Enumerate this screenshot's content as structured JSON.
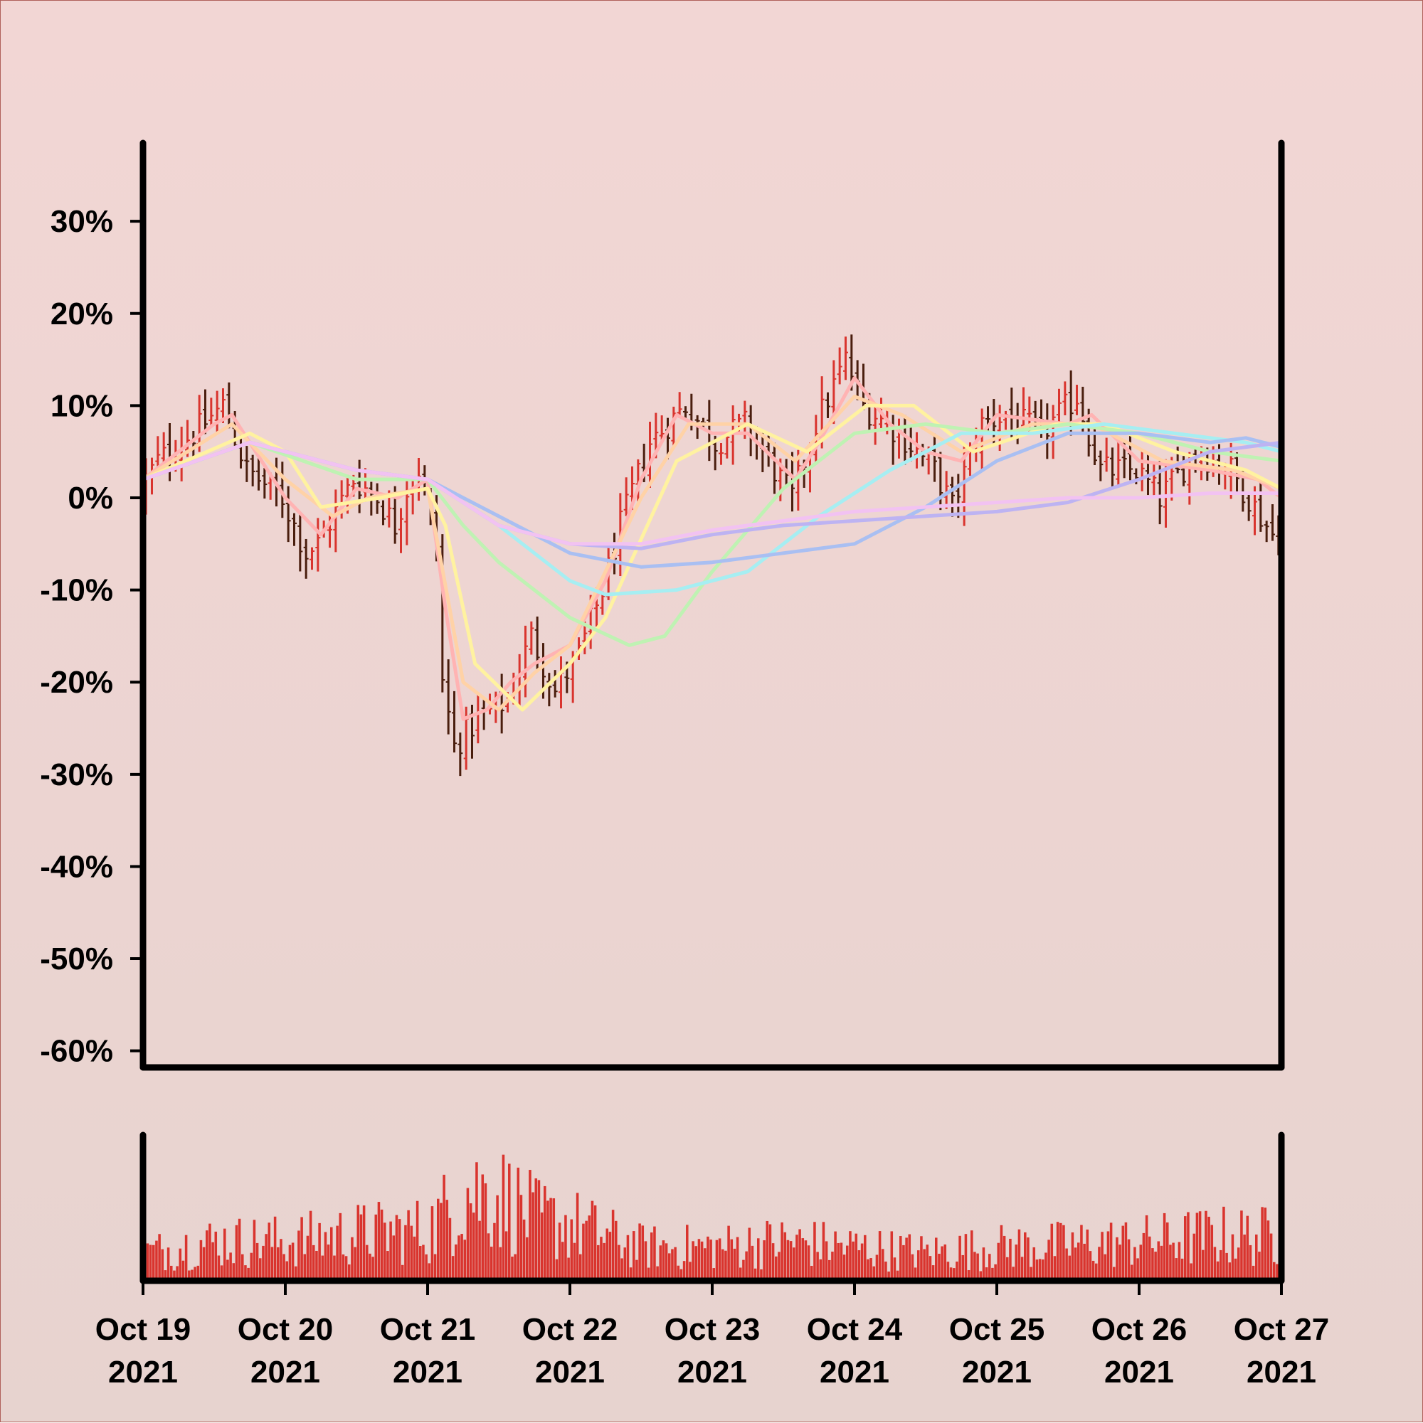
{
  "chart_data": {
    "type": "ohlc",
    "title": "",
    "xlabel": "",
    "ylabel": "",
    "ylim": [
      -60,
      38
    ],
    "y_ticks": [
      "30%",
      "20%",
      "10%",
      "0%",
      "-10%",
      "-20%",
      "-30%",
      "-40%",
      "-50%",
      "-60%"
    ],
    "y_tick_values": [
      30,
      20,
      10,
      0,
      -10,
      -20,
      -30,
      -40,
      -50,
      -60
    ],
    "x_start": "2021-10-19",
    "x_end": "2021-10-27",
    "x_ticks": [
      {
        "line1": "Oct 19",
        "line2": "2021"
      },
      {
        "line1": "Oct 20",
        "line2": "2021"
      },
      {
        "line1": "Oct 21",
        "line2": "2021"
      },
      {
        "line1": "Oct 22",
        "line2": "2021"
      },
      {
        "line1": "Oct 23",
        "line2": "2021"
      },
      {
        "line1": "Oct 24",
        "line2": "2021"
      },
      {
        "line1": "Oct 25",
        "line2": "2021"
      },
      {
        "line1": "Oct 26",
        "line2": "2021"
      },
      {
        "line1": "Oct 27",
        "line2": "2021"
      }
    ],
    "bar_interval_hours": 1,
    "close_anchors": [
      {
        "t": "2021-10-19 00:00",
        "y": 1
      },
      {
        "t": "2021-10-19 03:00",
        "y": 4
      },
      {
        "t": "2021-10-19 09:00",
        "y": 7
      },
      {
        "t": "2021-10-19 14:00",
        "y": 10
      },
      {
        "t": "2021-10-19 18:00",
        "y": 3
      },
      {
        "t": "2021-10-20 00:00",
        "y": 0
      },
      {
        "t": "2021-10-20 04:00",
        "y": -6
      },
      {
        "t": "2021-10-20 06:00",
        "y": -5
      },
      {
        "t": "2021-10-20 12:00",
        "y": 2
      },
      {
        "t": "2021-10-20 16:00",
        "y": 0
      },
      {
        "t": "2021-10-20 19:00",
        "y": -3
      },
      {
        "t": "2021-10-20 21:00",
        "y": 1
      },
      {
        "t": "2021-10-20 23:00",
        "y": 3
      },
      {
        "t": "2021-10-21 02:00",
        "y": -5
      },
      {
        "t": "2021-10-21 03:00",
        "y": -20
      },
      {
        "t": "2021-10-21 05:00",
        "y": -27
      },
      {
        "t": "2021-10-21 09:00",
        "y": -24
      },
      {
        "t": "2021-10-21 14:00",
        "y": -22
      },
      {
        "t": "2021-10-21 18:00",
        "y": -15
      },
      {
        "t": "2021-10-21 22:00",
        "y": -21
      },
      {
        "t": "2021-10-22 02:00",
        "y": -17
      },
      {
        "t": "2021-10-22 06:00",
        "y": -10
      },
      {
        "t": "2021-10-22 09:00",
        "y": -3
      },
      {
        "t": "2021-10-22 14:00",
        "y": 6
      },
      {
        "t": "2021-10-22 20:00",
        "y": 10
      },
      {
        "t": "2021-10-23 01:00",
        "y": 6
      },
      {
        "t": "2021-10-23 06:00",
        "y": 8
      },
      {
        "t": "2021-10-23 12:00",
        "y": 2
      },
      {
        "t": "2021-10-23 14:00",
        "y": 0
      },
      {
        "t": "2021-10-23 18:00",
        "y": 8
      },
      {
        "t": "2021-10-23 23:00",
        "y": 15
      },
      {
        "t": "2021-10-24 02:00",
        "y": 10
      },
      {
        "t": "2021-10-24 08:00",
        "y": 7
      },
      {
        "t": "2021-10-24 14:00",
        "y": 3
      },
      {
        "t": "2021-10-24 17:00",
        "y": -1
      },
      {
        "t": "2021-10-24 22:00",
        "y": 8
      },
      {
        "t": "2021-10-25 02:00",
        "y": 9
      },
      {
        "t": "2021-10-25 08:00",
        "y": 7
      },
      {
        "t": "2021-10-25 14:00",
        "y": 11
      },
      {
        "t": "2021-10-25 18:00",
        "y": 3
      },
      {
        "t": "2021-10-26 00:00",
        "y": 3
      },
      {
        "t": "2021-10-26 04:00",
        "y": 0
      },
      {
        "t": "2021-10-26 10:00",
        "y": 5
      },
      {
        "t": "2021-10-26 16:00",
        "y": 3
      },
      {
        "t": "2021-10-26 20:00",
        "y": -1
      },
      {
        "t": "2021-10-26 23:00",
        "y": -4
      }
    ],
    "series": [
      {
        "color": "#ffb3b3",
        "points": [
          {
            "t": "2021-10-19 00:00",
            "y": 2
          },
          {
            "t": "2021-10-19 12:00",
            "y": 8
          },
          {
            "t": "2021-10-19 15:00",
            "y": 9
          },
          {
            "t": "2021-10-20 00:00",
            "y": 0
          },
          {
            "t": "2021-10-20 06:00",
            "y": -4
          },
          {
            "t": "2021-10-20 12:00",
            "y": 1
          },
          {
            "t": "2021-10-20 19:00",
            "y": 0
          },
          {
            "t": "2021-10-21 00:00",
            "y": 2
          },
          {
            "t": "2021-10-21 03:00",
            "y": -12
          },
          {
            "t": "2021-10-21 06:00",
            "y": -24
          },
          {
            "t": "2021-10-21 10:00",
            "y": -23
          },
          {
            "t": "2021-10-21 14:00",
            "y": -20
          },
          {
            "t": "2021-10-21 18:00",
            "y": -18
          },
          {
            "t": "2021-10-22 00:00",
            "y": -16
          },
          {
            "t": "2021-10-22 06:00",
            "y": -9
          },
          {
            "t": "2021-10-22 12:00",
            "y": 2
          },
          {
            "t": "2021-10-22 18:00",
            "y": 9
          },
          {
            "t": "2021-10-23 00:00",
            "y": 7
          },
          {
            "t": "2021-10-23 06:00",
            "y": 7
          },
          {
            "t": "2021-10-23 14:00",
            "y": 2
          },
          {
            "t": "2021-10-23 18:00",
            "y": 6
          },
          {
            "t": "2021-10-24 00:00",
            "y": 13
          },
          {
            "t": "2021-10-24 06:00",
            "y": 8
          },
          {
            "t": "2021-10-24 12:00",
            "y": 5
          },
          {
            "t": "2021-10-24 18:00",
            "y": 4
          },
          {
            "t": "2021-10-25 00:00",
            "y": 9
          },
          {
            "t": "2021-10-25 12:00",
            "y": 8
          },
          {
            "t": "2021-10-25 16:00",
            "y": 9
          },
          {
            "t": "2021-10-26 00:00",
            "y": 4
          },
          {
            "t": "2021-10-26 12:00",
            "y": 3
          },
          {
            "t": "2021-10-26 20:00",
            "y": 2
          },
          {
            "t": "2021-10-27 00:00",
            "y": 0
          }
        ]
      },
      {
        "color": "#ffd2a6",
        "points": [
          {
            "t": "2021-10-19 00:00",
            "y": 2
          },
          {
            "t": "2021-10-19 15:00",
            "y": 8
          },
          {
            "t": "2021-10-20 00:00",
            "y": 2
          },
          {
            "t": "2021-10-20 08:00",
            "y": -2
          },
          {
            "t": "2021-10-20 14:00",
            "y": 0
          },
          {
            "t": "2021-10-21 00:00",
            "y": 1
          },
          {
            "t": "2021-10-21 06:00",
            "y": -20
          },
          {
            "t": "2021-10-21 12:00",
            "y": -23
          },
          {
            "t": "2021-10-21 18:00",
            "y": -19
          },
          {
            "t": "2021-10-22 00:00",
            "y": -16
          },
          {
            "t": "2021-10-22 12:00",
            "y": 0
          },
          {
            "t": "2021-10-22 20:00",
            "y": 8
          },
          {
            "t": "2021-10-23 06:00",
            "y": 8
          },
          {
            "t": "2021-10-23 14:00",
            "y": 4
          },
          {
            "t": "2021-10-24 00:00",
            "y": 11
          },
          {
            "t": "2021-10-24 08:00",
            "y": 9
          },
          {
            "t": "2021-10-24 18:00",
            "y": 5
          },
          {
            "t": "2021-10-25 06:00",
            "y": 8
          },
          {
            "t": "2021-10-25 16:00",
            "y": 8
          },
          {
            "t": "2021-10-26 04:00",
            "y": 4
          },
          {
            "t": "2021-10-26 16:00",
            "y": 3
          },
          {
            "t": "2021-10-27 00:00",
            "y": 1
          }
        ]
      },
      {
        "color": "#fff2a0",
        "points": [
          {
            "t": "2021-10-19 00:00",
            "y": 2
          },
          {
            "t": "2021-10-19 18:00",
            "y": 7
          },
          {
            "t": "2021-10-20 00:00",
            "y": 5
          },
          {
            "t": "2021-10-20 06:00",
            "y": -1
          },
          {
            "t": "2021-10-20 16:00",
            "y": 0
          },
          {
            "t": "2021-10-21 00:00",
            "y": 1
          },
          {
            "t": "2021-10-21 03:00",
            "y": -3
          },
          {
            "t": "2021-10-21 08:00",
            "y": -18
          },
          {
            "t": "2021-10-21 16:00",
            "y": -23
          },
          {
            "t": "2021-10-22 00:00",
            "y": -18
          },
          {
            "t": "2021-10-22 06:00",
            "y": -13
          },
          {
            "t": "2021-10-22 18:00",
            "y": 4
          },
          {
            "t": "2021-10-23 06:00",
            "y": 8
          },
          {
            "t": "2021-10-23 16:00",
            "y": 5
          },
          {
            "t": "2021-10-24 02:00",
            "y": 10
          },
          {
            "t": "2021-10-24 10:00",
            "y": 10
          },
          {
            "t": "2021-10-24 20:00",
            "y": 5
          },
          {
            "t": "2021-10-25 10:00",
            "y": 8
          },
          {
            "t": "2021-10-25 18:00",
            "y": 8
          },
          {
            "t": "2021-10-26 06:00",
            "y": 5
          },
          {
            "t": "2021-10-26 18:00",
            "y": 3
          },
          {
            "t": "2021-10-27 00:00",
            "y": 1
          }
        ]
      },
      {
        "color": "#bff2b3",
        "points": [
          {
            "t": "2021-10-19 00:00",
            "y": 2
          },
          {
            "t": "2021-10-19 18:00",
            "y": 6
          },
          {
            "t": "2021-10-20 12:00",
            "y": 2
          },
          {
            "t": "2021-10-21 00:00",
            "y": 2
          },
          {
            "t": "2021-10-21 06:00",
            "y": -3
          },
          {
            "t": "2021-10-21 12:00",
            "y": -7
          },
          {
            "t": "2021-10-22 00:00",
            "y": -13
          },
          {
            "t": "2021-10-22 10:00",
            "y": -16
          },
          {
            "t": "2021-10-22 16:00",
            "y": -15
          },
          {
            "t": "2021-10-23 00:00",
            "y": -8
          },
          {
            "t": "2021-10-23 12:00",
            "y": 1
          },
          {
            "t": "2021-10-24 00:00",
            "y": 7
          },
          {
            "t": "2021-10-24 12:00",
            "y": 8
          },
          {
            "t": "2021-10-25 00:00",
            "y": 7
          },
          {
            "t": "2021-10-25 12:00",
            "y": 8
          },
          {
            "t": "2021-10-26 00:00",
            "y": 7
          },
          {
            "t": "2021-10-26 12:00",
            "y": 5
          },
          {
            "t": "2021-10-27 00:00",
            "y": 4
          }
        ]
      },
      {
        "color": "#a6eef2",
        "points": [
          {
            "t": "2021-10-19 00:00",
            "y": 2
          },
          {
            "t": "2021-10-19 18:00",
            "y": 6
          },
          {
            "t": "2021-10-20 12:00",
            "y": 3
          },
          {
            "t": "2021-10-21 00:00",
            "y": 2
          },
          {
            "t": "2021-10-21 12:00",
            "y": -3
          },
          {
            "t": "2021-10-22 00:00",
            "y": -9
          },
          {
            "t": "2021-10-22 06:00",
            "y": -10.5
          },
          {
            "t": "2021-10-22 18:00",
            "y": -10
          },
          {
            "t": "2021-10-23 06:00",
            "y": -8
          },
          {
            "t": "2021-10-23 18:00",
            "y": -2
          },
          {
            "t": "2021-10-24 06:00",
            "y": 3
          },
          {
            "t": "2021-10-24 18:00",
            "y": 7
          },
          {
            "t": "2021-10-25 06:00",
            "y": 7
          },
          {
            "t": "2021-10-25 18:00",
            "y": 8
          },
          {
            "t": "2021-10-26 06:00",
            "y": 7
          },
          {
            "t": "2021-10-26 18:00",
            "y": 6
          },
          {
            "t": "2021-10-27 00:00",
            "y": 5
          }
        ]
      },
      {
        "color": "#a9bff2",
        "points": [
          {
            "t": "2021-10-19 00:00",
            "y": 2
          },
          {
            "t": "2021-10-19 18:00",
            "y": 6
          },
          {
            "t": "2021-10-20 12:00",
            "y": 3
          },
          {
            "t": "2021-10-21 00:00",
            "y": 2
          },
          {
            "t": "2021-10-21 12:00",
            "y": -2
          },
          {
            "t": "2021-10-22 00:00",
            "y": -6
          },
          {
            "t": "2021-10-22 12:00",
            "y": -7.5
          },
          {
            "t": "2021-10-23 00:00",
            "y": -7
          },
          {
            "t": "2021-10-23 12:00",
            "y": -6
          },
          {
            "t": "2021-10-24 00:00",
            "y": -5
          },
          {
            "t": "2021-10-24 12:00",
            "y": -1
          },
          {
            "t": "2021-10-25 00:00",
            "y": 4
          },
          {
            "t": "2021-10-25 12:00",
            "y": 7
          },
          {
            "t": "2021-10-26 00:00",
            "y": 7
          },
          {
            "t": "2021-10-26 12:00",
            "y": 6
          },
          {
            "t": "2021-10-26 18:00",
            "y": 6.5
          },
          {
            "t": "2021-10-27 00:00",
            "y": 5.5
          }
        ]
      },
      {
        "color": "#bdb3f2",
        "points": [
          {
            "t": "2021-10-19 00:00",
            "y": 2
          },
          {
            "t": "2021-10-19 18:00",
            "y": 6
          },
          {
            "t": "2021-10-20 12:00",
            "y": 3
          },
          {
            "t": "2021-10-21 00:00",
            "y": 2
          },
          {
            "t": "2021-10-21 12:00",
            "y": -3
          },
          {
            "t": "2021-10-22 00:00",
            "y": -5
          },
          {
            "t": "2021-10-22 12:00",
            "y": -5.5
          },
          {
            "t": "2021-10-23 00:00",
            "y": -4
          },
          {
            "t": "2021-10-23 12:00",
            "y": -3
          },
          {
            "t": "2021-10-24 00:00",
            "y": -2.5
          },
          {
            "t": "2021-10-24 12:00",
            "y": -2
          },
          {
            "t": "2021-10-25 00:00",
            "y": -1.5
          },
          {
            "t": "2021-10-25 12:00",
            "y": -0.5
          },
          {
            "t": "2021-10-26 00:00",
            "y": 2
          },
          {
            "t": "2021-10-26 12:00",
            "y": 5
          },
          {
            "t": "2021-10-27 00:00",
            "y": 6
          }
        ]
      },
      {
        "color": "#f2c2f2",
        "points": [
          {
            "t": "2021-10-19 00:00",
            "y": 2
          },
          {
            "t": "2021-10-19 18:00",
            "y": 6
          },
          {
            "t": "2021-10-20 12:00",
            "y": 3
          },
          {
            "t": "2021-10-21 00:00",
            "y": 2
          },
          {
            "t": "2021-10-21 12:00",
            "y": -3
          },
          {
            "t": "2021-10-22 00:00",
            "y": -5
          },
          {
            "t": "2021-10-22 12:00",
            "y": -5
          },
          {
            "t": "2021-10-23 00:00",
            "y": -3.5
          },
          {
            "t": "2021-10-23 12:00",
            "y": -2.5
          },
          {
            "t": "2021-10-24 00:00",
            "y": -1.5
          },
          {
            "t": "2021-10-24 12:00",
            "y": -1
          },
          {
            "t": "2021-10-25 00:00",
            "y": -0.5
          },
          {
            "t": "2021-10-25 12:00",
            "y": 0
          },
          {
            "t": "2021-10-26 00:00",
            "y": 0
          },
          {
            "t": "2021-10-26 12:00",
            "y": 0.5
          },
          {
            "t": "2021-10-27 00:00",
            "y": 0.5
          }
        ]
      }
    ],
    "volume": {
      "color": "#d9342e",
      "levels": [
        {
          "t": "2021-10-19 00:00",
          "v": 0.25
        },
        {
          "t": "2021-10-19 12:00",
          "v": 0.35
        },
        {
          "t": "2021-10-20 00:00",
          "v": 0.35
        },
        {
          "t": "2021-10-20 12:00",
          "v": 0.42
        },
        {
          "t": "2021-10-21 00:00",
          "v": 0.45
        },
        {
          "t": "2021-10-21 06:00",
          "v": 0.8
        },
        {
          "t": "2021-10-21 12:00",
          "v": 0.75
        },
        {
          "t": "2021-10-21 18:00",
          "v": 0.55
        },
        {
          "t": "2021-10-22 00:00",
          "v": 0.5
        },
        {
          "t": "2021-10-22 12:00",
          "v": 0.3
        },
        {
          "t": "2021-10-23 00:00",
          "v": 0.3
        },
        {
          "t": "2021-10-23 12:00",
          "v": 0.35
        },
        {
          "t": "2021-10-24 00:00",
          "v": 0.3
        },
        {
          "t": "2021-10-24 12:00",
          "v": 0.25
        },
        {
          "t": "2021-10-25 00:00",
          "v": 0.3
        },
        {
          "t": "2021-10-25 12:00",
          "v": 0.32
        },
        {
          "t": "2021-10-26 00:00",
          "v": 0.35
        },
        {
          "t": "2021-10-26 12:00",
          "v": 0.4
        },
        {
          "t": "2021-10-27 00:00",
          "v": 0.4
        }
      ]
    },
    "colors": {
      "up": "#d9342e",
      "down": "#4a1e0e",
      "background_top": "#f2d6d4",
      "background_bottom": "#e7d3cf",
      "axis": "#000000"
    },
    "grid": false,
    "legend": "none"
  }
}
